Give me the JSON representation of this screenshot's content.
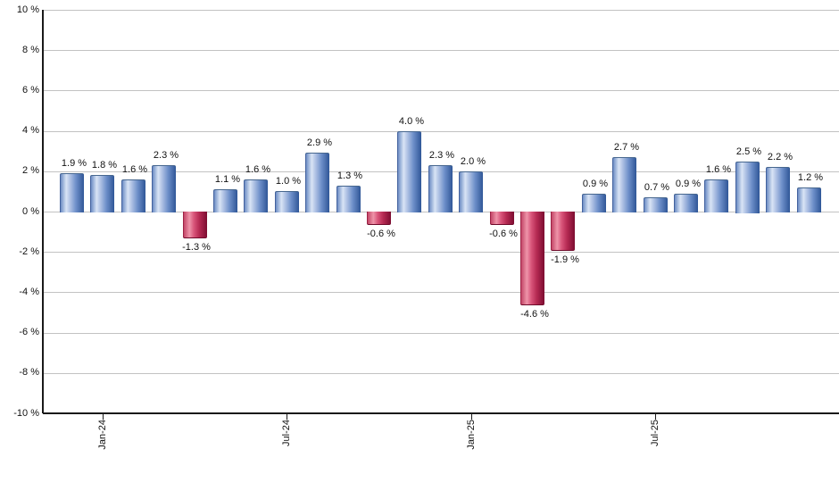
{
  "chart_data": {
    "type": "bar",
    "title": "",
    "xlabel": "",
    "ylabel": "",
    "values": [
      1.9,
      1.8,
      1.6,
      2.3,
      -1.3,
      1.1,
      1.6,
      1.0,
      2.9,
      1.3,
      -0.6,
      4.0,
      2.3,
      2.0,
      -0.6,
      -4.6,
      -1.9,
      0.9,
      2.7,
      0.7,
      0.9,
      1.6,
      2.5,
      2.2,
      1.2
    ],
    "bar_labels": [
      "1.9 %",
      "1.8 %",
      "1.6 %",
      "2.3 %",
      "-1.3 %",
      "1.1 %",
      "1.6 %",
      "1.0 %",
      "2.9 %",
      "1.3 %",
      "-0.6 %",
      "4.0 %",
      "2.3 %",
      "2.0 %",
      "-0.6 %",
      "-4.6 %",
      "-1.9 %",
      "0.9 %",
      "2.7 %",
      "0.7 %",
      "0.9 %",
      "1.6 %",
      "2.5 %",
      "2.2 %",
      "1.2 %"
    ],
    "x_ticks": [
      {
        "label": "Jan-24",
        "bar_index": 1
      },
      {
        "label": "Jul-24",
        "bar_index": 7
      },
      {
        "label": "Jan-25",
        "bar_index": 13
      },
      {
        "label": "Jul-25",
        "bar_index": 19
      }
    ],
    "y_tick_labels": [
      "10 %",
      "8 %",
      "6 %",
      "4 %",
      "2 %",
      "0 %",
      "-2 %",
      "-4 %",
      "-6 %",
      "-8 %",
      "-10 %"
    ],
    "ylim": [
      -10,
      10
    ],
    "y_step": 2,
    "grid": true,
    "legend": "none",
    "colors": {
      "positive_bar": "#6f93cc",
      "positive_highlight": "#d9e4f5",
      "positive_dark": "#2f5697",
      "negative_bar": "#d9567b",
      "negative_highlight": "#ee94a9",
      "negative_dark": "#7c0c30",
      "gridline": "#c2c2c2",
      "axis": "#1a1a1a",
      "label_text": "#111111"
    }
  }
}
